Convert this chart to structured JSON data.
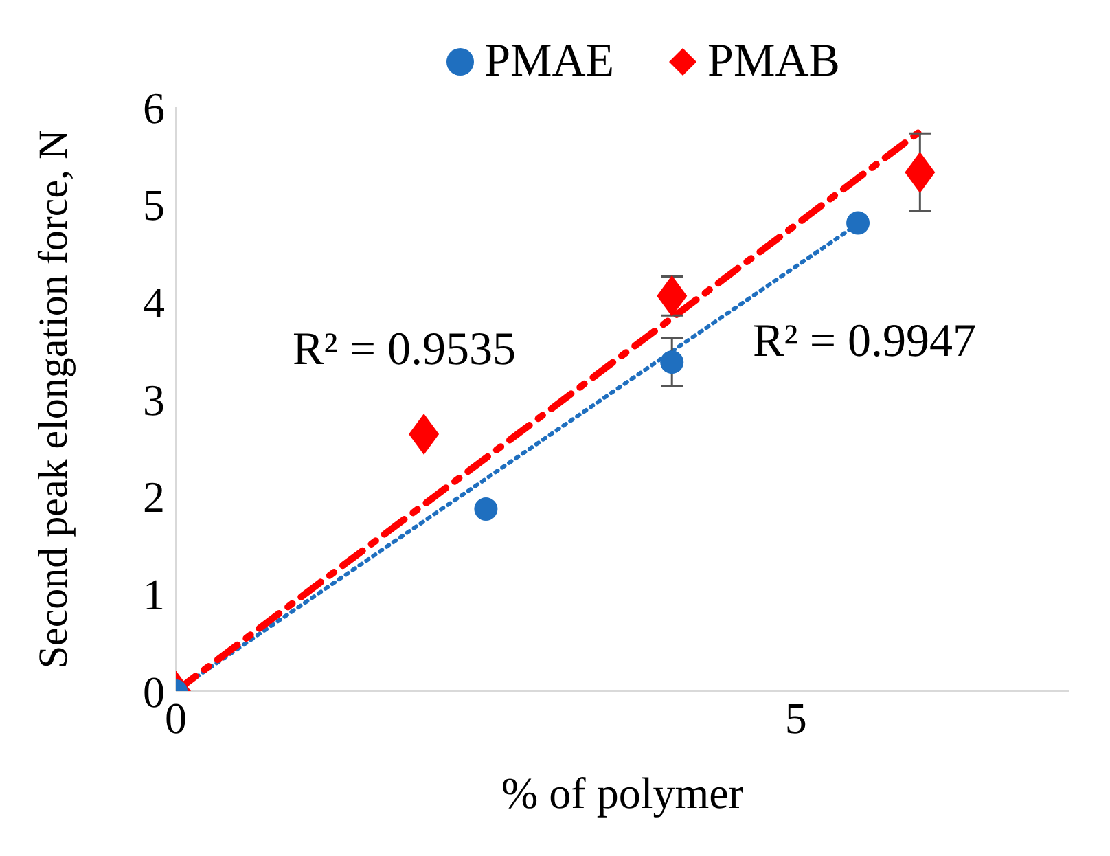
{
  "chart_data": {
    "type": "scatter",
    "xlabel": "% of polymer",
    "ylabel": "Second peak elongation force, N",
    "xlim": [
      0,
      7.2
    ],
    "xticks": [
      0,
      5
    ],
    "ylim": [
      0,
      6
    ],
    "yticks": [
      0,
      1,
      2,
      3,
      4,
      5,
      6
    ],
    "grid": false,
    "legend": "top",
    "series": [
      {
        "name": "PMAE",
        "marker": "circle",
        "color": "#1f6fbf",
        "x": [
          0,
          2.5,
          4,
          5.5
        ],
        "values": [
          0,
          1.87,
          3.38,
          4.81
        ],
        "errors": [
          null,
          null,
          0.25,
          null
        ]
      },
      {
        "name": "PMAB",
        "marker": "diamond",
        "color": "#ff0000",
        "x": [
          0,
          2,
          4,
          6
        ],
        "values": [
          0,
          2.64,
          4.06,
          5.33
        ],
        "errors": [
          null,
          null,
          0.2,
          0.4
        ]
      },
      {
        "type": "line",
        "line_style": "dotted",
        "color": "#1f6fbf",
        "x": [
          0,
          5.5
        ],
        "values": [
          0,
          4.8
        ]
      },
      {
        "type": "line",
        "line_style": "dashed",
        "color": "#ff0000",
        "x": [
          0,
          6
        ],
        "values": [
          0,
          5.75
        ]
      }
    ],
    "annotations": [
      "R² = 0.9535",
      "R² = 0.9947"
    ]
  }
}
